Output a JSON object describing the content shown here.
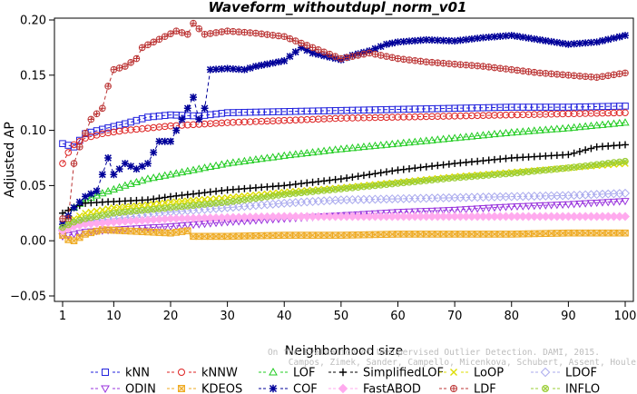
{
  "chart_data": {
    "type": "line",
    "title": "Waveform_withoutdupl_norm_v01",
    "xlabel": "Neighborhood size",
    "ylabel": "Adjusted AP",
    "xlim": [
      1,
      100
    ],
    "ylim": [
      -0.05,
      0.2
    ],
    "x_ticks": [
      "1",
      "10",
      "20",
      "30",
      "40",
      "50",
      "60",
      "70",
      "80",
      "90",
      "100"
    ],
    "y_ticks": [
      "−0.05",
      "0.00",
      "0.05",
      "0.10",
      "0.15",
      "0.20"
    ],
    "grid": false,
    "legend_position": "bottom",
    "series": [
      {
        "name": "kNN",
        "color": "#2222dd",
        "marker": "square",
        "points": [
          [
            1,
            0.088
          ],
          [
            3,
            0.085
          ],
          [
            5,
            0.097
          ],
          [
            8,
            0.101
          ],
          [
            12,
            0.106
          ],
          [
            16,
            0.112
          ],
          [
            20,
            0.114
          ],
          [
            25,
            0.113
          ],
          [
            30,
            0.116
          ],
          [
            40,
            0.117
          ],
          [
            50,
            0.118
          ],
          [
            60,
            0.119
          ],
          [
            70,
            0.12
          ],
          [
            80,
            0.121
          ],
          [
            90,
            0.121
          ],
          [
            100,
            0.122
          ]
        ]
      },
      {
        "name": "kNNW",
        "color": "#dd2222",
        "marker": "circle",
        "points": [
          [
            1,
            0.07
          ],
          [
            2,
            0.08
          ],
          [
            3,
            0.087
          ],
          [
            5,
            0.093
          ],
          [
            8,
            0.097
          ],
          [
            12,
            0.1
          ],
          [
            16,
            0.102
          ],
          [
            20,
            0.104
          ],
          [
            30,
            0.107
          ],
          [
            40,
            0.109
          ],
          [
            50,
            0.111
          ],
          [
            60,
            0.112
          ],
          [
            70,
            0.113
          ],
          [
            80,
            0.114
          ],
          [
            90,
            0.115
          ],
          [
            100,
            0.116
          ]
        ]
      },
      {
        "name": "LOF",
        "color": "#22cc22",
        "marker": "triangle-up",
        "points": [
          [
            1,
            0.014
          ],
          [
            3,
            0.03
          ],
          [
            5,
            0.037
          ],
          [
            8,
            0.043
          ],
          [
            12,
            0.05
          ],
          [
            16,
            0.056
          ],
          [
            20,
            0.06
          ],
          [
            25,
            0.065
          ],
          [
            30,
            0.07
          ],
          [
            40,
            0.077
          ],
          [
            50,
            0.083
          ],
          [
            60,
            0.088
          ],
          [
            70,
            0.093
          ],
          [
            80,
            0.098
          ],
          [
            90,
            0.102
          ],
          [
            100,
            0.107
          ]
        ]
      },
      {
        "name": "SimplifiedLOF",
        "color": "#000000",
        "marker": "plus",
        "points": [
          [
            1,
            0.025
          ],
          [
            3,
            0.03
          ],
          [
            5,
            0.034
          ],
          [
            8,
            0.035
          ],
          [
            12,
            0.036
          ],
          [
            16,
            0.037
          ],
          [
            20,
            0.04
          ],
          [
            25,
            0.043
          ],
          [
            30,
            0.046
          ],
          [
            40,
            0.05
          ],
          [
            50,
            0.056
          ],
          [
            60,
            0.064
          ],
          [
            70,
            0.07
          ],
          [
            80,
            0.075
          ],
          [
            90,
            0.078
          ],
          [
            95,
            0.085
          ],
          [
            100,
            0.087
          ]
        ]
      },
      {
        "name": "LoOP",
        "color": "#dddd00",
        "marker": "cross",
        "points": [
          [
            1,
            0.01
          ],
          [
            3,
            0.02
          ],
          [
            5,
            0.025
          ],
          [
            10,
            0.03
          ],
          [
            15,
            0.032
          ],
          [
            20,
            0.035
          ],
          [
            30,
            0.039
          ],
          [
            40,
            0.044
          ],
          [
            50,
            0.048
          ],
          [
            60,
            0.053
          ],
          [
            70,
            0.058
          ],
          [
            80,
            0.062
          ],
          [
            90,
            0.066
          ],
          [
            100,
            0.07
          ]
        ]
      },
      {
        "name": "LDOF",
        "color": "#aaaaee",
        "marker": "diamond",
        "points": [
          [
            1,
            0.01
          ],
          [
            3,
            0.015
          ],
          [
            5,
            0.018
          ],
          [
            10,
            0.02
          ],
          [
            20,
            0.026
          ],
          [
            30,
            0.03
          ],
          [
            40,
            0.034
          ],
          [
            50,
            0.037
          ],
          [
            60,
            0.038
          ],
          [
            70,
            0.039
          ],
          [
            80,
            0.04
          ],
          [
            90,
            0.041
          ],
          [
            100,
            0.043
          ]
        ]
      },
      {
        "name": "ODIN",
        "color": "#9933dd",
        "marker": "triangle-down",
        "points": [
          [
            1,
            0.004
          ],
          [
            3,
            0.006
          ],
          [
            5,
            0.008
          ],
          [
            10,
            0.01
          ],
          [
            20,
            0.013
          ],
          [
            30,
            0.017
          ],
          [
            40,
            0.02
          ],
          [
            50,
            0.023
          ],
          [
            60,
            0.026
          ],
          [
            70,
            0.028
          ],
          [
            80,
            0.031
          ],
          [
            90,
            0.033
          ],
          [
            100,
            0.036
          ]
        ]
      },
      {
        "name": "KDEOS",
        "color": "#eeaa22",
        "marker": "square-cross",
        "points": [
          [
            1,
            0.005
          ],
          [
            2,
            0.001
          ],
          [
            3,
            0.0
          ],
          [
            5,
            0.006
          ],
          [
            8,
            0.01
          ],
          [
            12,
            0.009
          ],
          [
            16,
            0.008
          ],
          [
            20,
            0.007
          ],
          [
            23,
            0.009
          ],
          [
            23.5,
            0.004
          ],
          [
            30,
            0.004
          ],
          [
            40,
            0.005
          ],
          [
            50,
            0.005
          ],
          [
            60,
            0.006
          ],
          [
            70,
            0.006
          ],
          [
            80,
            0.006
          ],
          [
            90,
            0.007
          ],
          [
            100,
            0.007
          ]
        ]
      },
      {
        "name": "COF",
        "color": "#000099",
        "marker": "asterisk",
        "points": [
          [
            1,
            0.015
          ],
          [
            3,
            0.03
          ],
          [
            5,
            0.04
          ],
          [
            7,
            0.045
          ],
          [
            9,
            0.075
          ],
          [
            10,
            0.06
          ],
          [
            12,
            0.07
          ],
          [
            14,
            0.065
          ],
          [
            16,
            0.07
          ],
          [
            18,
            0.09
          ],
          [
            20,
            0.09
          ],
          [
            22,
            0.11
          ],
          [
            24,
            0.13
          ],
          [
            25,
            0.11
          ],
          [
            26,
            0.12
          ],
          [
            27,
            0.155
          ],
          [
            30,
            0.156
          ],
          [
            33,
            0.155
          ],
          [
            35,
            0.158
          ],
          [
            40,
            0.163
          ],
          [
            43,
            0.175
          ],
          [
            45,
            0.17
          ],
          [
            50,
            0.164
          ],
          [
            52,
            0.168
          ],
          [
            55,
            0.172
          ],
          [
            58,
            0.178
          ],
          [
            60,
            0.18
          ],
          [
            65,
            0.182
          ],
          [
            70,
            0.181
          ],
          [
            75,
            0.184
          ],
          [
            80,
            0.186
          ],
          [
            85,
            0.182
          ],
          [
            90,
            0.178
          ],
          [
            95,
            0.18
          ],
          [
            100,
            0.186
          ]
        ]
      },
      {
        "name": "FastABOD",
        "color": "#ffaaee",
        "marker": "diamond-filled",
        "points": [
          [
            1,
            0.009
          ],
          [
            3,
            0.013
          ],
          [
            5,
            0.015
          ],
          [
            10,
            0.017
          ],
          [
            20,
            0.02
          ],
          [
            30,
            0.021
          ],
          [
            40,
            0.022
          ],
          [
            50,
            0.022
          ],
          [
            60,
            0.022
          ],
          [
            70,
            0.022
          ],
          [
            80,
            0.022
          ],
          [
            90,
            0.022
          ],
          [
            100,
            0.022
          ]
        ]
      },
      {
        "name": "LDF",
        "color": "#bb3333",
        "marker": "circle-plus",
        "points": [
          [
            1,
            0.02
          ],
          [
            2,
            0.02
          ],
          [
            3,
            0.07
          ],
          [
            4,
            0.085
          ],
          [
            6,
            0.11
          ],
          [
            8,
            0.12
          ],
          [
            9,
            0.14
          ],
          [
            10,
            0.155
          ],
          [
            12,
            0.158
          ],
          [
            14,
            0.165
          ],
          [
            15,
            0.175
          ],
          [
            17,
            0.18
          ],
          [
            19,
            0.185
          ],
          [
            21,
            0.19
          ],
          [
            23,
            0.187
          ],
          [
            24,
            0.197
          ],
          [
            26,
            0.187
          ],
          [
            30,
            0.19
          ],
          [
            35,
            0.188
          ],
          [
            40,
            0.185
          ],
          [
            45,
            0.175
          ],
          [
            50,
            0.165
          ],
          [
            55,
            0.17
          ],
          [
            60,
            0.165
          ],
          [
            65,
            0.162
          ],
          [
            70,
            0.16
          ],
          [
            75,
            0.158
          ],
          [
            80,
            0.155
          ],
          [
            85,
            0.152
          ],
          [
            90,
            0.15
          ],
          [
            95,
            0.148
          ],
          [
            100,
            0.152
          ]
        ]
      },
      {
        "name": "INFLO",
        "color": "#99cc33",
        "marker": "circle-cross",
        "points": [
          [
            1,
            0.012
          ],
          [
            3,
            0.017
          ],
          [
            5,
            0.02
          ],
          [
            10,
            0.025
          ],
          [
            20,
            0.03
          ],
          [
            30,
            0.035
          ],
          [
            40,
            0.042
          ],
          [
            50,
            0.047
          ],
          [
            60,
            0.052
          ],
          [
            70,
            0.057
          ],
          [
            80,
            0.061
          ],
          [
            90,
            0.066
          ],
          [
            100,
            0.072
          ]
        ]
      }
    ]
  },
  "legend_rows": [
    [
      "kNN",
      "kNNW",
      "LOF",
      "SimplifiedLOF",
      "LoOP",
      "LDOF"
    ],
    [
      "ODIN",
      "KDEOS",
      "COF",
      "FastABOD",
      "LDF",
      "INFLO"
    ]
  ],
  "watermark": [
    "Campos, Zimek, Sander, Campello, Micenkova, Schubert, Assent, Houle",
    "On the Evaluation of Unsupervised Outlier Detection. DAMI, 2015."
  ]
}
